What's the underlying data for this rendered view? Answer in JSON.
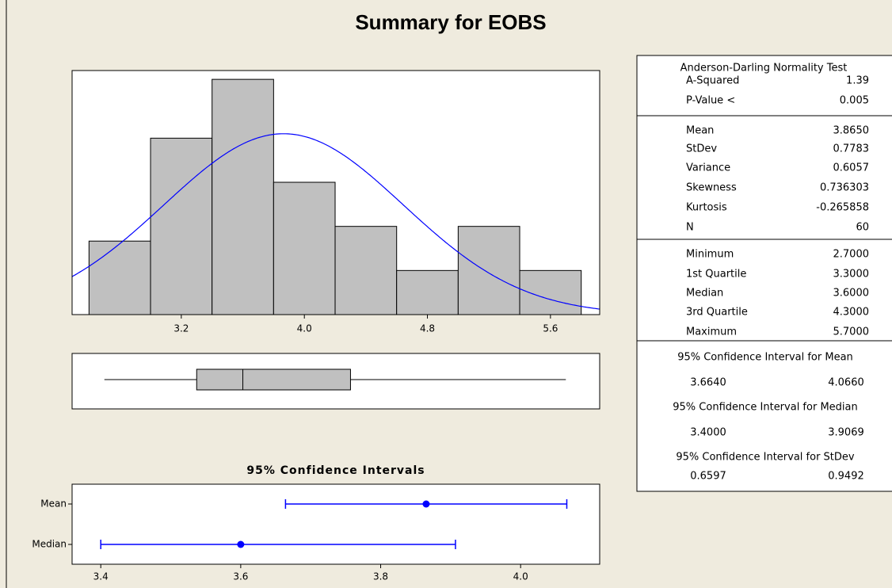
{
  "title": "Summary for EOBS",
  "chart_data": [
    {
      "type": "histogram",
      "bins": [
        2.6,
        3.0,
        3.4,
        3.8,
        4.2,
        4.6,
        5.0,
        5.4,
        5.8
      ],
      "values": [
        5,
        12,
        16,
        9,
        6,
        3,
        6,
        3
      ],
      "color": "#c0c0c0",
      "xlim": [
        2.49,
        5.92
      ],
      "ylim": [
        0,
        16.6
      ],
      "xticks": [
        3.2,
        {
          "value": 4,
          "label": "4.0"
        },
        4.8,
        5.6
      ],
      "fit": {
        "mean": 3.865,
        "stdev": 0.7783,
        "n": 60,
        "color": "#0000ff"
      }
    },
    {
      "type": "boxplot",
      "min": 2.7,
      "q1": 3.3,
      "median": 3.6,
      "q3": 4.3,
      "max": 5.7,
      "color": "#c0c0c0",
      "xlim": [
        2.49,
        5.92
      ]
    },
    {
      "type": "interval",
      "title": "95% Confidence Intervals",
      "categories": [
        "Mean",
        "Median"
      ],
      "values": [
        3.865,
        3.6
      ],
      "lower": [
        3.664,
        3.4
      ],
      "upper": [
        4.066,
        3.9069
      ],
      "color": "#0000ff",
      "xlim": [
        3.359,
        4.113
      ],
      "xticks": [
        3.4,
        3.6,
        3.8,
        {
          "value": 4,
          "label": "4.0"
        }
      ]
    }
  ],
  "summary_table": {
    "normality": {
      "title": "Anderson-Darling Normality Test",
      "rows": [
        [
          "A-Squared",
          "1.39"
        ],
        [
          "P-Value <",
          "0.005"
        ]
      ]
    },
    "stats": [
      [
        "Mean",
        "3.8650"
      ],
      [
        "StDev",
        "0.7783"
      ],
      [
        "Variance",
        "0.6057"
      ],
      [
        "Skewness",
        "0.736303"
      ],
      [
        "Kurtosis",
        "-0.265858"
      ],
      [
        "N",
        "60"
      ]
    ],
    "quantiles": [
      [
        "Minimum",
        "2.7000"
      ],
      [
        "1st Quartile",
        "3.3000"
      ],
      [
        "Median",
        "3.6000"
      ],
      [
        "3rd Quartile",
        "4.3000"
      ],
      [
        "Maximum",
        "5.7000"
      ]
    ],
    "intervals": [
      {
        "title": "95% Confidence Interval for Mean",
        "values": [
          "3.6640",
          "4.0660"
        ]
      },
      {
        "title": "95% Confidence Interval for Median",
        "values": [
          "3.4000",
          "3.9069"
        ]
      },
      {
        "title": "95% Confidence Interval for StDev",
        "values": [
          "0.6597",
          "0.9492"
        ]
      }
    ]
  }
}
